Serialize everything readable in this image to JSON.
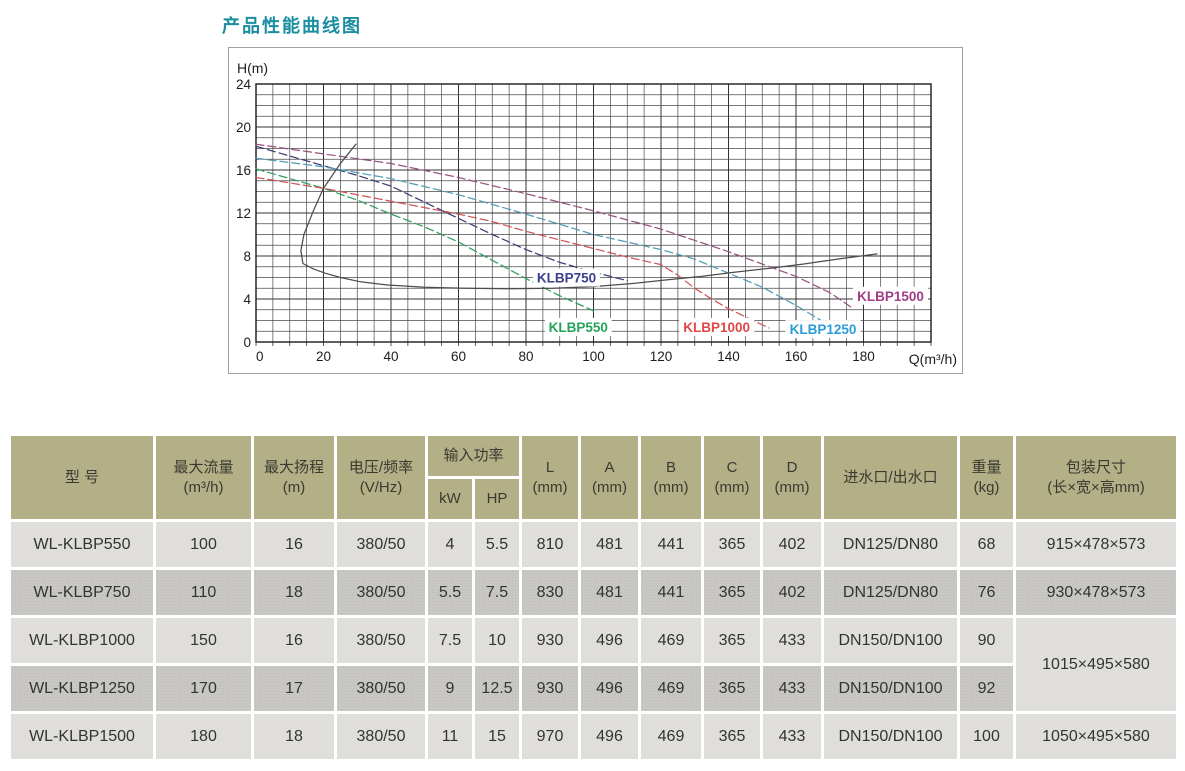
{
  "page": {
    "title": "产品性能曲线图"
  },
  "chart_data": {
    "type": "line",
    "title": "产品性能曲线图",
    "xlabel": "Q(m³/h)",
    "ylabel": "H(m)",
    "xlim": [
      0,
      200
    ],
    "ylim": [
      0,
      24
    ],
    "x_major_ticks": [
      0,
      20,
      40,
      60,
      80,
      100,
      120,
      140,
      160,
      180
    ],
    "y_major_ticks": [
      0,
      4,
      8,
      12,
      16,
      20,
      24
    ],
    "grid": "on, minor x step 5, minor y step 1",
    "legend_position": "inline-labels",
    "series": [
      {
        "name": "KLBP550",
        "color": "#2f9e5e",
        "label_color": "#28a35b",
        "style": "dashed",
        "label_pos": [
          95.5,
          1.4
        ],
        "points": [
          [
            0,
            16.1
          ],
          [
            10,
            15.2
          ],
          [
            20,
            14.3
          ],
          [
            30,
            13.2
          ],
          [
            40,
            11.9
          ],
          [
            50,
            10.7
          ],
          [
            60,
            9.3
          ],
          [
            70,
            7.6
          ],
          [
            80,
            5.9
          ],
          [
            90,
            4.3
          ],
          [
            100,
            2.9
          ]
        ]
      },
      {
        "name": "KLBP750",
        "color": "#3b3f74",
        "label_color": "#3b3f8c",
        "style": "dashed",
        "label_pos": [
          92,
          6.0
        ],
        "points": [
          [
            0,
            18.2
          ],
          [
            10,
            17.3
          ],
          [
            20,
            16.4
          ],
          [
            30,
            15.5
          ],
          [
            40,
            14.5
          ],
          [
            50,
            13.0
          ],
          [
            60,
            11.5
          ],
          [
            70,
            10.0
          ],
          [
            80,
            8.6
          ],
          [
            90,
            7.4
          ],
          [
            100,
            6.5
          ],
          [
            110,
            5.7
          ]
        ]
      },
      {
        "name": "KLBP1000",
        "color": "#cf5555",
        "label_color": "#e04747",
        "style": "dashed",
        "label_pos": [
          136.5,
          1.4
        ],
        "points": [
          [
            0,
            15.3
          ],
          [
            20,
            14.3
          ],
          [
            40,
            13.1
          ],
          [
            60,
            11.9
          ],
          [
            70,
            11.2
          ],
          [
            80,
            10.3
          ],
          [
            90,
            9.5
          ],
          [
            100,
            8.7
          ],
          [
            110,
            7.9
          ],
          [
            120,
            7.2
          ],
          [
            125,
            6.2
          ],
          [
            130,
            5.0
          ],
          [
            135,
            4.0
          ],
          [
            140,
            3.1
          ],
          [
            146,
            2.2
          ],
          [
            152,
            1.3
          ]
        ]
      },
      {
        "name": "KLBP1250",
        "color": "#4f9cb4",
        "label_color": "#2b9cd8",
        "style": "dashed",
        "label_pos": [
          168,
          1.2
        ],
        "points": [
          [
            0,
            17.1
          ],
          [
            20,
            16.3
          ],
          [
            40,
            15.2
          ],
          [
            60,
            13.7
          ],
          [
            80,
            11.9
          ],
          [
            100,
            10.0
          ],
          [
            120,
            8.6
          ],
          [
            130,
            7.7
          ],
          [
            140,
            6.4
          ],
          [
            150,
            5.1
          ],
          [
            160,
            3.4
          ],
          [
            168,
            1.9
          ]
        ]
      },
      {
        "name": "KLBP1500",
        "color": "#97527f",
        "label_color": "#a13d85",
        "style": "dashed",
        "label_pos": [
          188,
          4.3
        ],
        "points": [
          [
            0,
            18.4
          ],
          [
            20,
            17.5
          ],
          [
            40,
            16.6
          ],
          [
            60,
            15.3
          ],
          [
            80,
            13.8
          ],
          [
            100,
            12.2
          ],
          [
            120,
            10.5
          ],
          [
            140,
            8.4
          ],
          [
            160,
            6.1
          ],
          [
            170,
            4.6
          ],
          [
            177,
            3.1
          ]
        ]
      },
      {
        "name": "operating-envelope",
        "color": "#4d4d4d",
        "label_color": null,
        "style": "solid",
        "label_pos": null,
        "points": [
          [
            29.6,
            18.4
          ],
          [
            25,
            16.6
          ],
          [
            20,
            14.3
          ],
          [
            17,
            12.2
          ],
          [
            14.2,
            10.0
          ],
          [
            13.3,
            8.5
          ],
          [
            13.9,
            7.3
          ],
          [
            17,
            6.8
          ],
          [
            20.5,
            6.4
          ],
          [
            25,
            6.0
          ],
          [
            31,
            5.6
          ],
          [
            39,
            5.3
          ],
          [
            50,
            5.1
          ],
          [
            62,
            5.0
          ],
          [
            75,
            4.95
          ],
          [
            88,
            5.0
          ],
          [
            100,
            5.15
          ],
          [
            112,
            5.45
          ],
          [
            122,
            5.8
          ],
          [
            132,
            6.1
          ],
          [
            142,
            6.5
          ],
          [
            152,
            6.85
          ],
          [
            162,
            7.25
          ],
          [
            172,
            7.7
          ],
          [
            184,
            8.2
          ]
        ]
      }
    ]
  },
  "table": {
    "columns": {
      "model": {
        "title": "型 号"
      },
      "flow": {
        "title": "最大流量",
        "unit": "(m³/h)"
      },
      "head": {
        "title": "最大扬程",
        "unit": "(m)"
      },
      "voltage": {
        "title": "电压/频率",
        "unit": "(V/Hz)"
      },
      "power": {
        "title": "输入功率",
        "kw": "kW",
        "hp": "HP"
      },
      "L": {
        "title": "L",
        "unit": "(mm)"
      },
      "A": {
        "title": "A",
        "unit": "(mm)"
      },
      "B": {
        "title": "B",
        "unit": "(mm)"
      },
      "C": {
        "title": "C",
        "unit": "(mm)"
      },
      "D": {
        "title": "D",
        "unit": "(mm)"
      },
      "ports": {
        "title": "进水口/出水口"
      },
      "weight": {
        "title": "重量",
        "unit": "(kg)"
      },
      "pack": {
        "title": "包装尺寸",
        "unit": "(长×宽×高mm)"
      }
    },
    "rows": [
      {
        "model": "WL-KLBP550",
        "flow": "100",
        "head": "16",
        "voltage": "380/50",
        "kw": "4",
        "hp": "5.5",
        "L": "810",
        "A": "481",
        "B": "441",
        "C": "365",
        "D": "402",
        "ports": "DN125/DN80",
        "weight": "68",
        "pack": "915×478×573",
        "pack_rowspan": 1
      },
      {
        "model": "WL-KLBP750",
        "flow": "110",
        "head": "18",
        "voltage": "380/50",
        "kw": "5.5",
        "hp": "7.5",
        "L": "830",
        "A": "481",
        "B": "441",
        "C": "365",
        "D": "402",
        "ports": "DN125/DN80",
        "weight": "76",
        "pack": "930×478×573",
        "pack_rowspan": 1
      },
      {
        "model": "WL-KLBP1000",
        "flow": "150",
        "head": "16",
        "voltage": "380/50",
        "kw": "7.5",
        "hp": "10",
        "L": "930",
        "A": "496",
        "B": "469",
        "C": "365",
        "D": "433",
        "ports": "DN150/DN100",
        "weight": "90",
        "pack": "1015×495×580",
        "pack_rowspan": 2
      },
      {
        "model": "WL-KLBP1250",
        "flow": "170",
        "head": "17",
        "voltage": "380/50",
        "kw": "9",
        "hp": "12.5",
        "L": "930",
        "A": "496",
        "B": "469",
        "C": "365",
        "D": "433",
        "ports": "DN150/DN100",
        "weight": "92",
        "pack": null,
        "pack_rowspan": 0
      },
      {
        "model": "WL-KLBP1500",
        "flow": "180",
        "head": "18",
        "voltage": "380/50",
        "kw": "11",
        "hp": "15",
        "L": "970",
        "A": "496",
        "B": "469",
        "C": "365",
        "D": "433",
        "ports": "DN150/DN100",
        "weight": "100",
        "pack": "1050×495×580",
        "pack_rowspan": 1
      }
    ]
  }
}
